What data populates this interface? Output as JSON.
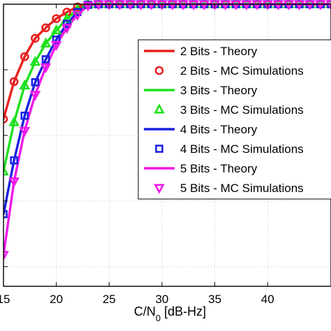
{
  "chart_data": {
    "type": "line",
    "title": "",
    "xlabel_main": "C/N",
    "xlabel_sub": "0",
    "xlabel_unit": " [dB-Hz]",
    "ylabel": "",
    "xlim": [
      15,
      46
    ],
    "ylim": [
      0.57,
      1.0
    ],
    "x_ticks": [
      15,
      20,
      25,
      30,
      35,
      40
    ],
    "x_tick_labels": [
      "15",
      "20",
      "25",
      "30",
      "35",
      "40"
    ],
    "y_ticks": [
      0.6,
      0.7,
      0.8,
      0.9,
      1.0
    ],
    "grid": true,
    "legend_position": "top-right",
    "series": [
      {
        "name": "2 Bits - Theory",
        "kind": "line",
        "color": "#e8211f",
        "x": [
          15,
          16,
          17,
          18,
          19,
          20,
          21,
          22,
          23,
          24,
          25,
          26,
          27,
          28,
          29,
          30,
          31,
          32,
          33,
          34,
          35,
          36,
          37,
          38,
          39,
          40,
          41,
          42,
          43,
          44,
          45,
          46
        ],
        "y": [
          0.825,
          0.882,
          0.92,
          0.948,
          0.964,
          0.978,
          0.988,
          0.996,
          0.9995,
          1,
          1,
          1,
          1,
          1,
          1,
          1,
          1,
          1,
          1,
          1,
          1,
          1,
          1,
          1,
          1,
          1,
          1,
          1,
          1,
          1,
          1,
          1
        ]
      },
      {
        "name": "2 Bits - MC Simulations",
        "kind": "marker",
        "marker": "circle",
        "color": "#e8211f",
        "x": [
          15,
          16,
          17,
          18,
          19,
          20,
          21,
          22,
          23,
          24,
          25,
          26,
          27,
          28,
          29,
          30,
          31,
          32,
          33,
          34,
          35,
          36,
          37,
          38,
          39,
          40,
          41,
          42,
          43,
          44,
          45,
          46
        ],
        "y": [
          0.825,
          0.882,
          0.92,
          0.948,
          0.964,
          0.978,
          0.988,
          0.996,
          0.9995,
          1,
          1,
          1,
          1,
          1,
          1,
          1,
          1,
          1,
          1,
          1,
          1,
          1,
          1,
          1,
          1,
          1,
          1,
          1,
          1,
          1,
          1,
          1
        ]
      },
      {
        "name": "3 Bits - Theory",
        "kind": "line",
        "color": "#1fe01f",
        "x": [
          15,
          16,
          17,
          18,
          19,
          20,
          21,
          22,
          23,
          24,
          25,
          26,
          27,
          28,
          29,
          30,
          31,
          32,
          33,
          34,
          35,
          36,
          37,
          38,
          39,
          40,
          41,
          42,
          43,
          44,
          45,
          46
        ],
        "y": [
          0.745,
          0.82,
          0.876,
          0.912,
          0.94,
          0.96,
          0.978,
          0.992,
          0.9995,
          1,
          1,
          1,
          1,
          1,
          1,
          1,
          1,
          1,
          1,
          1,
          1,
          1,
          1,
          1,
          1,
          1,
          1,
          1,
          1,
          1,
          1,
          1
        ]
      },
      {
        "name": "3 Bits - MC Simulations",
        "kind": "marker",
        "marker": "triangle-up",
        "color": "#1fe01f",
        "x": [
          15,
          16,
          17,
          18,
          19,
          20,
          21,
          22,
          23,
          24,
          25,
          26,
          27,
          28,
          29,
          30,
          31,
          32,
          33,
          34,
          35,
          36,
          37,
          38,
          39,
          40,
          41,
          42,
          43,
          44,
          45,
          46
        ],
        "y": [
          0.745,
          0.82,
          0.876,
          0.912,
          0.94,
          0.96,
          0.978,
          0.992,
          0.9995,
          1,
          1,
          1,
          1,
          1,
          1,
          1,
          1,
          1,
          1,
          1,
          1,
          1,
          1,
          1,
          1,
          1,
          1,
          1,
          1,
          1,
          1,
          1
        ]
      },
      {
        "name": "4 Bits - Theory",
        "kind": "line",
        "color": "#1a22e0",
        "x": [
          15,
          16,
          17,
          18,
          19,
          20,
          21,
          22,
          23,
          24,
          25,
          26,
          27,
          28,
          29,
          30,
          31,
          32,
          33,
          34,
          35,
          36,
          37,
          38,
          39,
          40,
          41,
          42,
          43,
          44,
          45,
          46
        ],
        "y": [
          0.68,
          0.762,
          0.83,
          0.881,
          0.916,
          0.946,
          0.97,
          0.988,
          0.999,
          1,
          1,
          1,
          1,
          1,
          1,
          1,
          1,
          1,
          1,
          1,
          1,
          1,
          1,
          1,
          1,
          1,
          1,
          1,
          1,
          1,
          1,
          1
        ]
      },
      {
        "name": "4 Bits - MC Simulations",
        "kind": "marker",
        "marker": "square",
        "color": "#1a22e0",
        "x": [
          15,
          16,
          17,
          18,
          19,
          20,
          21,
          22,
          23,
          24,
          25,
          26,
          27,
          28,
          29,
          30,
          31,
          32,
          33,
          34,
          35,
          36,
          37,
          38,
          39,
          40,
          41,
          42,
          43,
          44,
          45,
          46
        ],
        "y": [
          0.68,
          0.762,
          0.83,
          0.881,
          0.916,
          0.946,
          0.97,
          0.988,
          0.999,
          1,
          1,
          1,
          1,
          1,
          1,
          1,
          1,
          1,
          1,
          1,
          1,
          1,
          1,
          1,
          1,
          1,
          1,
          1,
          1,
          1,
          1,
          1
        ]
      },
      {
        "name": "5 Bits - Theory",
        "kind": "line",
        "color": "#f019e8",
        "x": [
          15,
          16,
          17,
          18,
          19,
          20,
          21,
          22,
          23,
          24,
          25,
          26,
          27,
          28,
          29,
          30,
          31,
          32,
          33,
          34,
          35,
          36,
          37,
          38,
          39,
          40,
          41,
          42,
          43,
          44,
          45,
          46
        ],
        "y": [
          0.618,
          0.73,
          0.807,
          0.862,
          0.904,
          0.938,
          0.964,
          0.984,
          0.998,
          1,
          1,
          1,
          1,
          1,
          1,
          1,
          1,
          1,
          1,
          1,
          1,
          1,
          1,
          1,
          1,
          1,
          1,
          1,
          1,
          1,
          1,
          1
        ]
      },
      {
        "name": "5 Bits - MC Simulations",
        "kind": "marker",
        "marker": "triangle-down",
        "color": "#f019e8",
        "x": [
          15,
          16,
          17,
          18,
          19,
          20,
          21,
          22,
          23,
          24,
          25,
          26,
          27,
          28,
          29,
          30,
          31,
          32,
          33,
          34,
          35,
          36,
          37,
          38,
          39,
          40,
          41,
          42,
          43,
          44,
          45,
          46
        ],
        "y": [
          0.618,
          0.73,
          0.807,
          0.862,
          0.904,
          0.938,
          0.964,
          0.984,
          0.998,
          1,
          1,
          1,
          1,
          1,
          1,
          1,
          1,
          1,
          1,
          1,
          1,
          1,
          1,
          1,
          1,
          1,
          1,
          1,
          1,
          1,
          1,
          1
        ]
      }
    ]
  }
}
